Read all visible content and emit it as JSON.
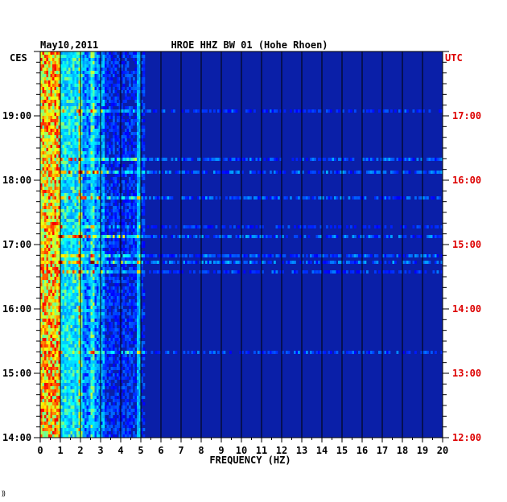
{
  "chart_data": {
    "type": "heatmap",
    "title_date": "May10,2011",
    "title": "HROE HHZ BW 01 (Hohe Rhoen)",
    "xlabel": "FREQUENCY (HZ)",
    "left_tz": "CES",
    "right_tz": "UTC",
    "xlim": [
      0,
      20
    ],
    "x_ticks": [
      "0",
      "1",
      "2",
      "3",
      "4",
      "5",
      "6",
      "7",
      "8",
      "9",
      "10",
      "11",
      "12",
      "13",
      "14",
      "15",
      "16",
      "17",
      "18",
      "19",
      "20"
    ],
    "left_ticks": [
      {
        "label": "19:00",
        "hour": 19
      },
      {
        "label": "18:00",
        "hour": 18
      },
      {
        "label": "17:00",
        "hour": 17
      },
      {
        "label": "16:00",
        "hour": 16
      },
      {
        "label": "15:00",
        "hour": 15
      },
      {
        "label": "14:00",
        "hour": 14
      }
    ],
    "right_ticks": [
      {
        "label": "17:00",
        "hour": 17
      },
      {
        "label": "16:00",
        "hour": 16
      },
      {
        "label": "15:00",
        "hour": 15
      },
      {
        "label": "14:00",
        "hour": 14
      },
      {
        "label": "13:00",
        "hour": 13
      },
      {
        "label": "12:00",
        "hour": 12
      }
    ],
    "y_range_hours_ces": [
      14.0,
      20.0
    ],
    "colormap": [
      "#00007f",
      "#0000ff",
      "#00a0ff",
      "#00ffff",
      "#ffff00",
      "#ff0000",
      "#7f0000"
    ],
    "background_color": "#0a1fa8",
    "grid_color": "#000000",
    "footer_mark": "⸩"
  }
}
